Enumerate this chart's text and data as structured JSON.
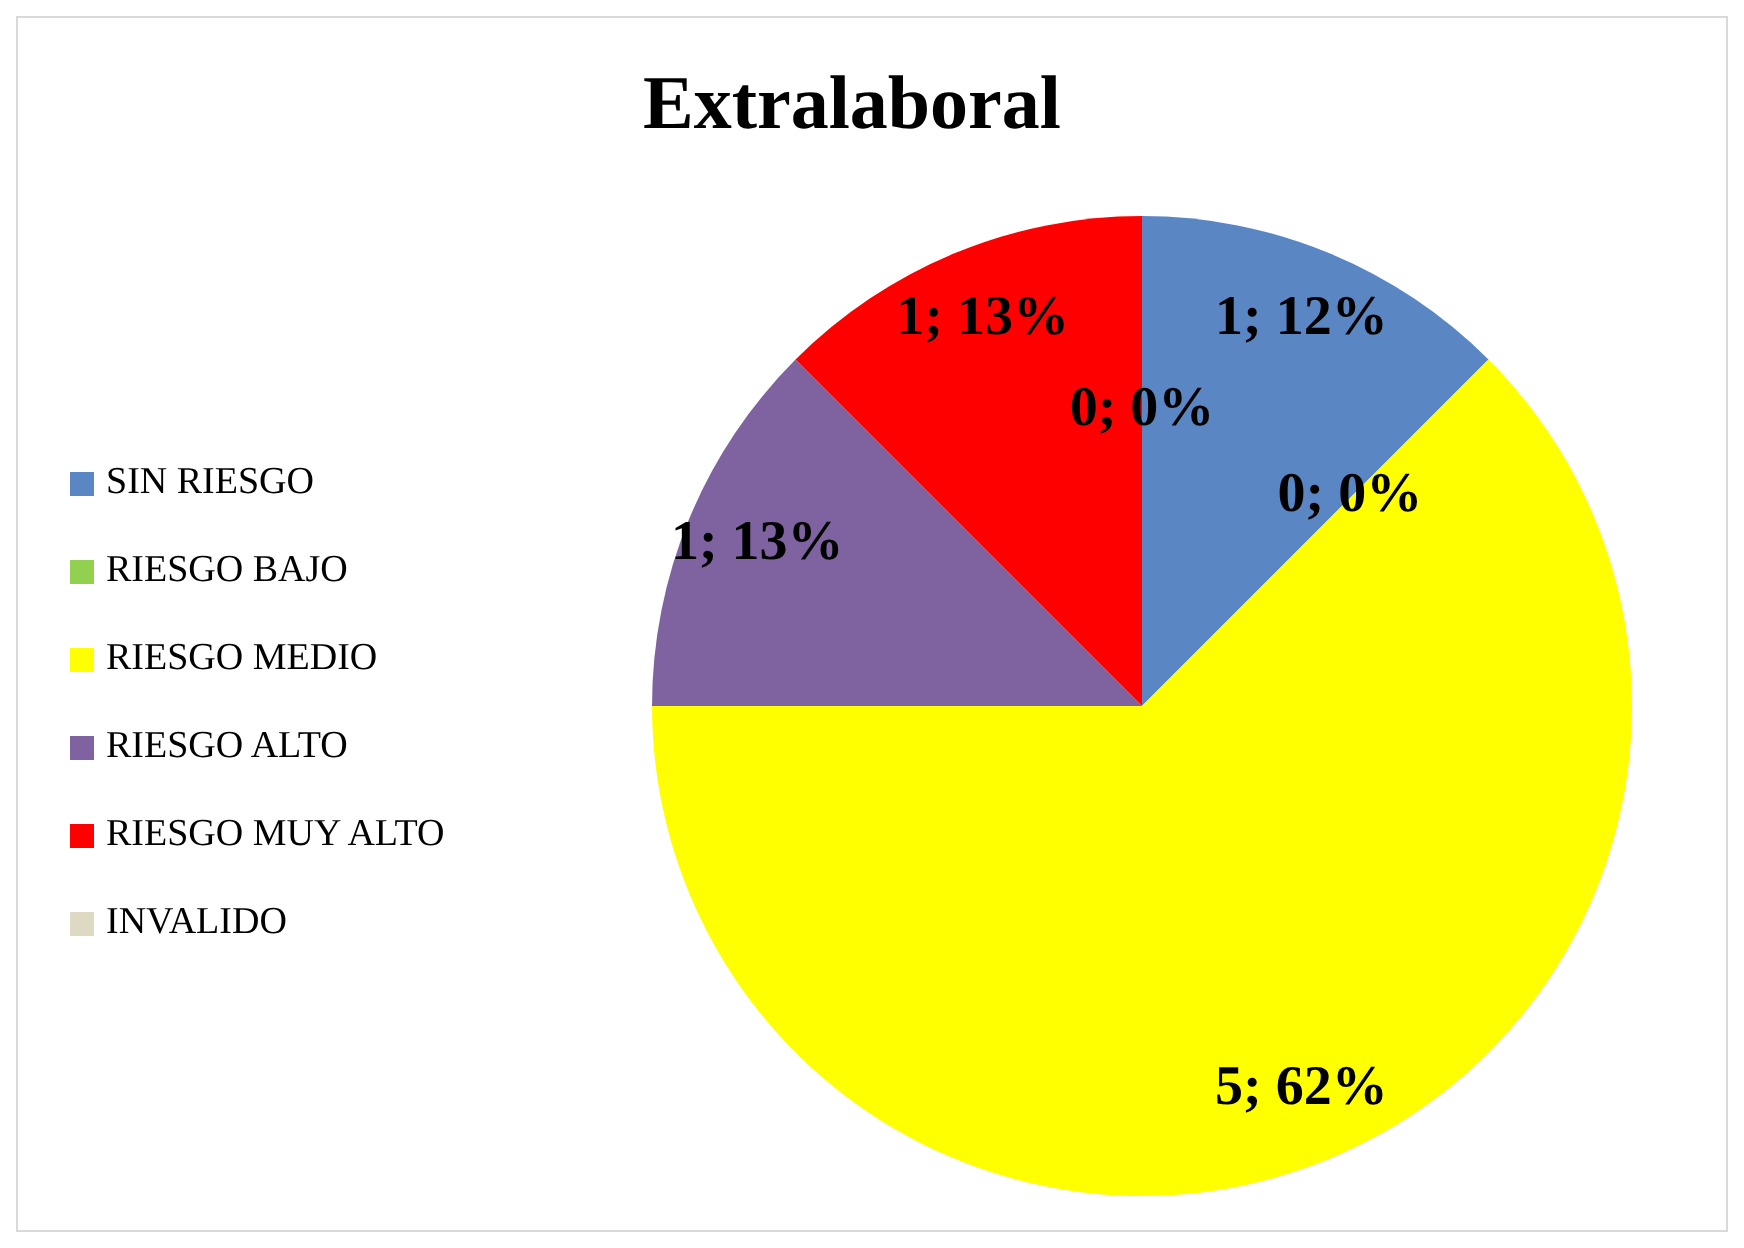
{
  "chart_data": {
    "type": "pie",
    "title": "Extralaboral",
    "categories": [
      "SIN RIESGO",
      "RIESGO BAJO",
      "RIESGO MEDIO",
      "RIESGO ALTO",
      "RIESGO MUY ALTO",
      "INVALIDO"
    ],
    "values": [
      1,
      0,
      5,
      1,
      1,
      0
    ],
    "colors": [
      "#5a86c4",
      "#92d050",
      "#ffff00",
      "#7f62a0",
      "#ff0000",
      "#ddd9c3"
    ],
    "value_labels": [
      "1; 12%",
      "0; 0%",
      "5; 62%",
      "1; 13%",
      "1; 13%",
      "0; 0%"
    ],
    "legend": "left"
  }
}
